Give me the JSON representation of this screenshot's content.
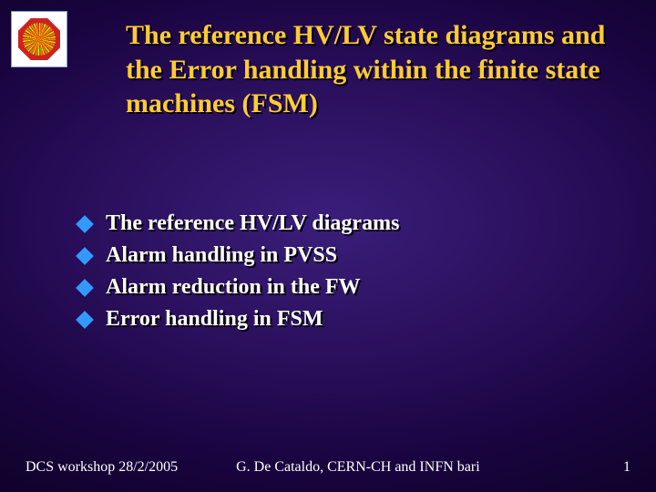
{
  "colors": {
    "title_color": "#ffcc33",
    "bullet_text_color": "#ffffff",
    "diamond_color": "#3399ff",
    "footer_color": "#ffffff",
    "bg_center": "#3a1e7a",
    "bg_edge": "#0d0226",
    "shadow": "#000000"
  },
  "title": "The reference HV/LV state diagrams and the Error handling within the finite state machines (FSM)",
  "title_fontsize": 30,
  "bullets": [
    "The reference HV/LV diagrams",
    "Alarm handling in PVSS",
    "Alarm reduction in the FW",
    "Error handling in FSM"
  ],
  "bullet_fontsize": 24,
  "footer": {
    "left": "DCS workshop 28/2/2005",
    "center": "G. De Cataldo, CERN-CH and INFN bari",
    "page": "1"
  },
  "footer_fontsize": 16,
  "logo": {
    "name": "detector-event-logo",
    "bg": "#ffffff",
    "octagon": "#cc2222"
  }
}
